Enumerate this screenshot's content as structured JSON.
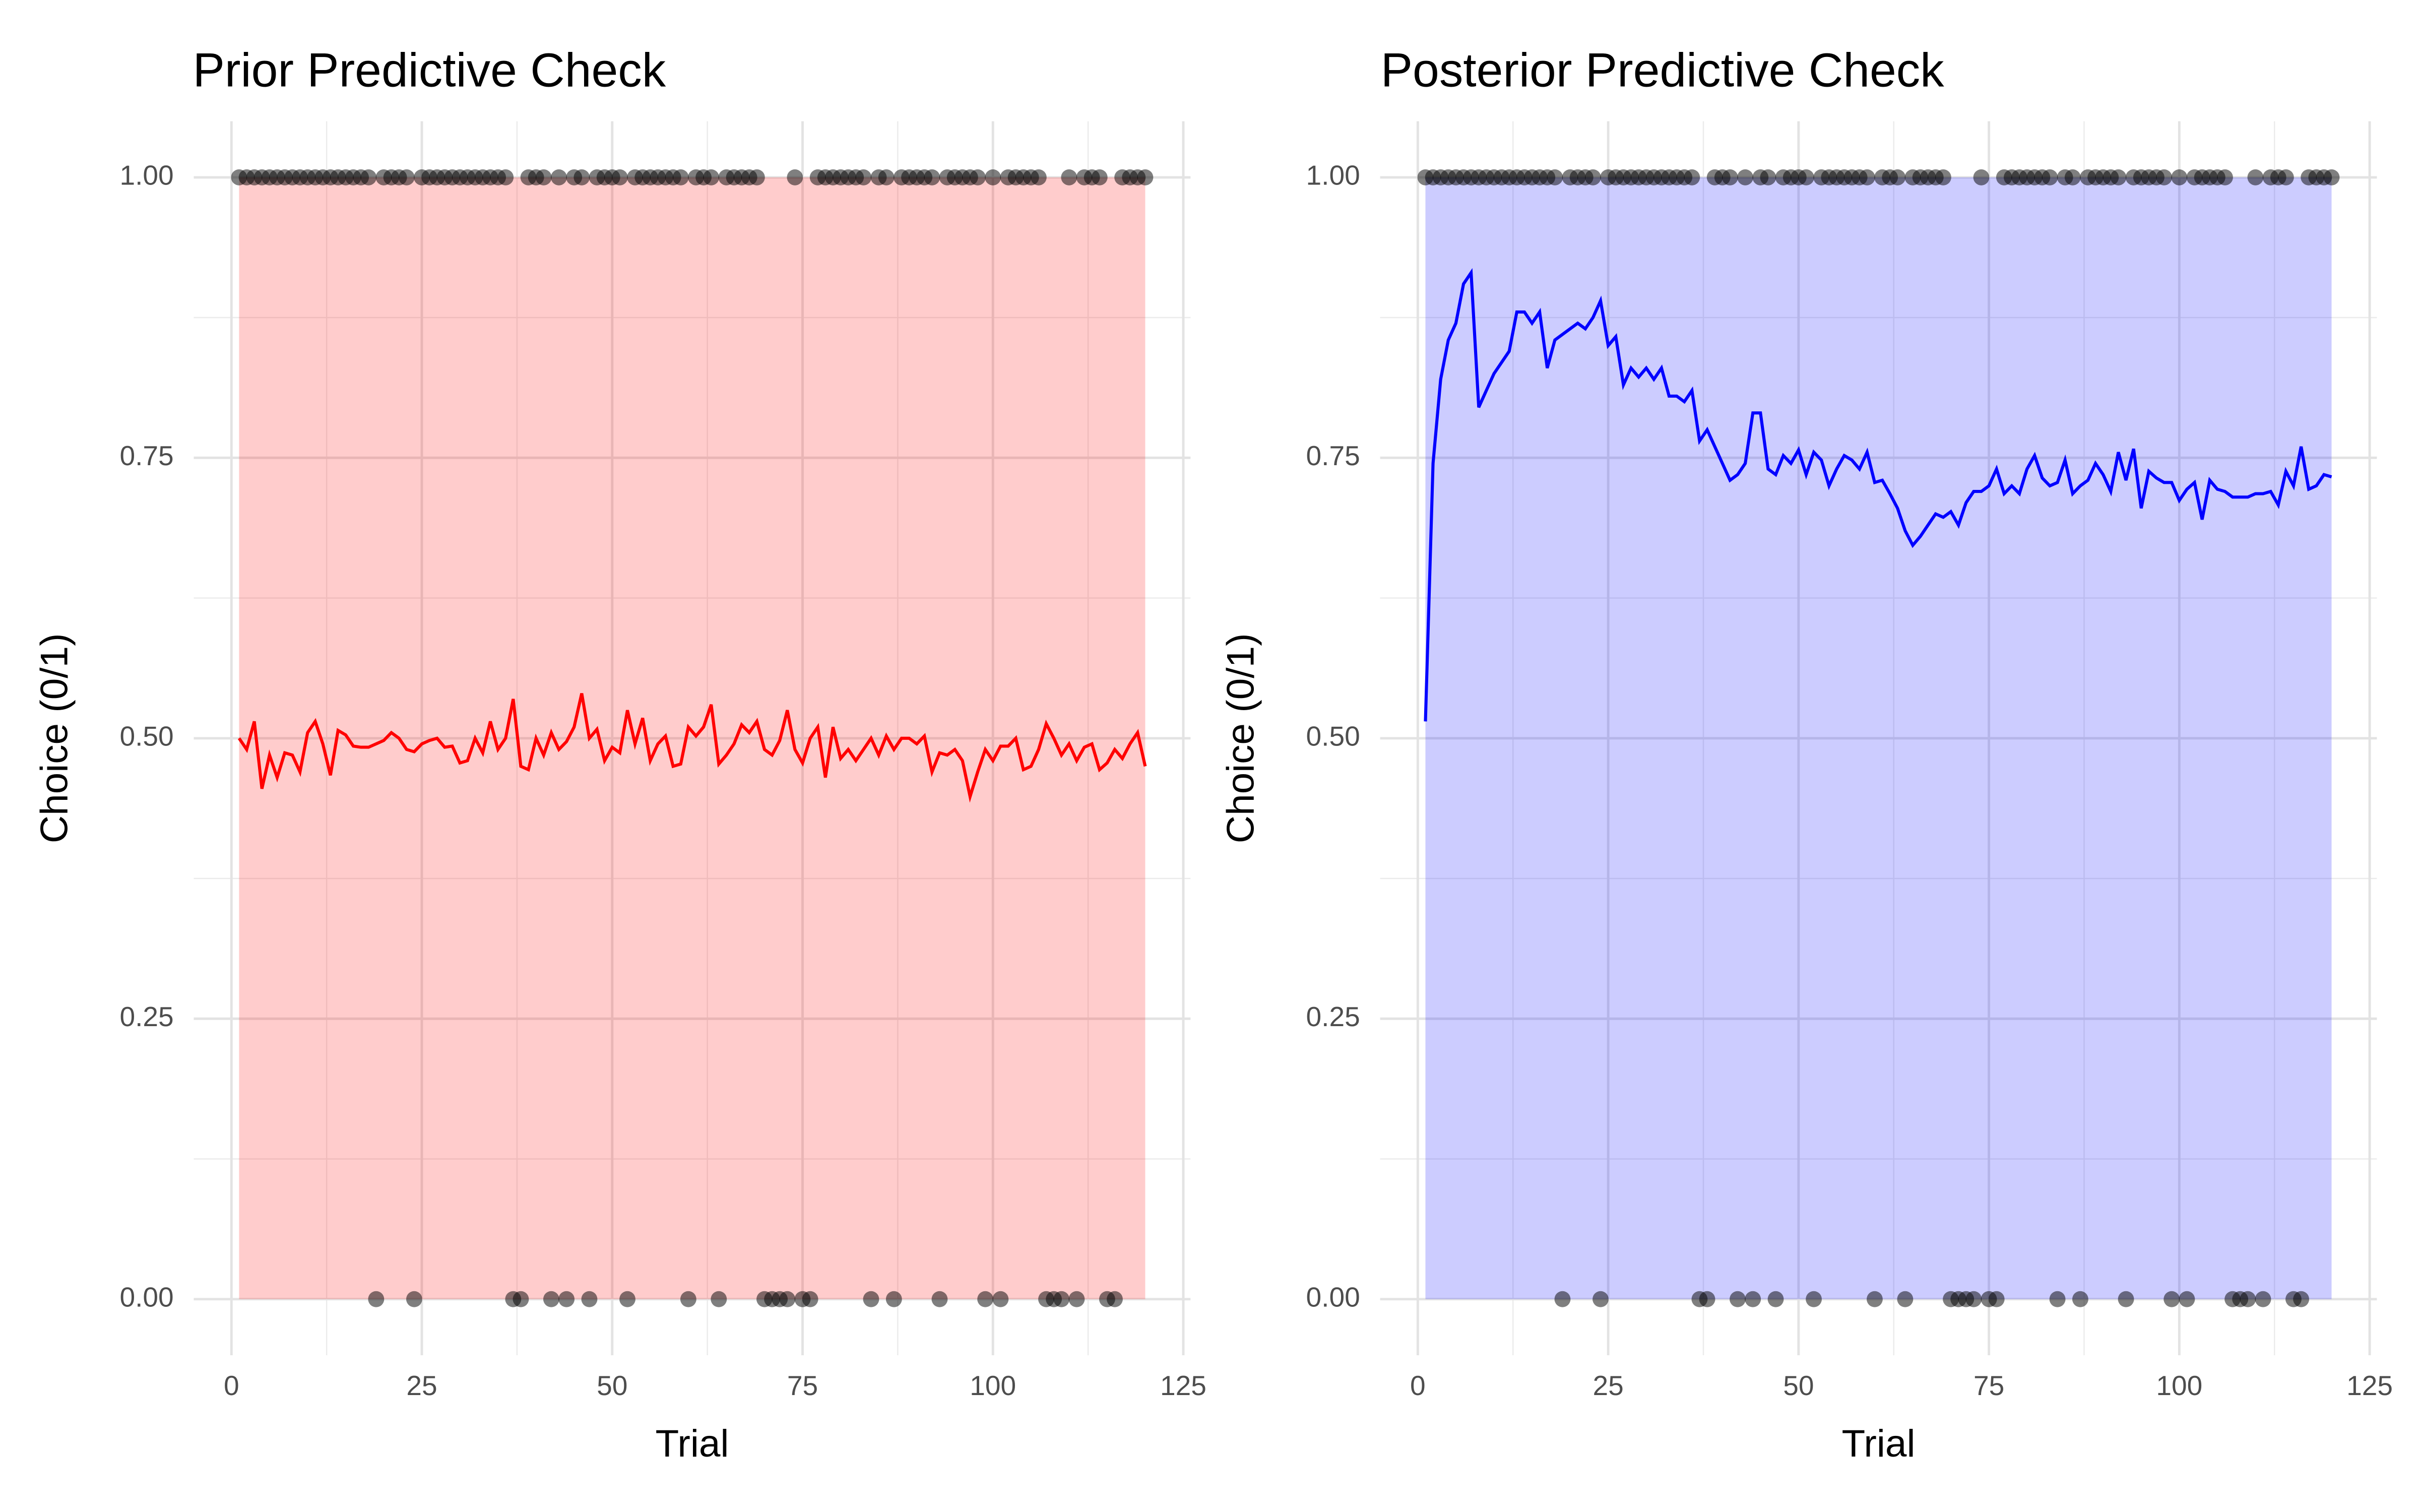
{
  "chart_data": [
    {
      "type": "line",
      "title": "Prior Predictive Check",
      "x_label": "Trial",
      "y_label": "Choice (0/1)",
      "x": [
        1,
        2,
        3,
        4,
        5,
        6,
        7,
        8,
        9,
        10,
        11,
        12,
        13,
        14,
        15,
        16,
        17,
        18,
        19,
        20,
        21,
        22,
        23,
        24,
        25,
        26,
        27,
        28,
        29,
        30,
        31,
        32,
        33,
        34,
        35,
        36,
        37,
        38,
        39,
        40,
        41,
        42,
        43,
        44,
        45,
        46,
        47,
        48,
        49,
        50,
        51,
        52,
        53,
        54,
        55,
        56,
        57,
        58,
        59,
        60,
        61,
        62,
        63,
        64,
        65,
        66,
        67,
        68,
        69,
        70,
        71,
        72,
        73,
        74,
        75,
        76,
        77,
        78,
        79,
        80,
        81,
        82,
        83,
        84,
        85,
        86,
        87,
        88,
        89,
        90,
        91,
        92,
        93,
        94,
        95,
        96,
        97,
        98,
        99,
        100,
        101,
        102,
        103,
        104,
        105,
        106,
        107,
        108,
        109,
        110,
        111,
        112,
        113,
        114,
        115,
        116,
        117,
        118,
        119,
        120
      ],
      "series": [
        {
          "color": "#ff0000",
          "values": [
            0.5,
            0.49,
            0.515,
            0.455,
            0.485,
            0.465,
            0.487,
            0.485,
            0.47,
            0.505,
            0.515,
            0.495,
            0.467,
            0.507,
            0.503,
            0.493,
            0.492,
            0.492,
            0.495,
            0.498,
            0.505,
            0.5,
            0.49,
            0.488,
            0.495,
            0.498,
            0.5,
            0.492,
            0.493,
            0.478,
            0.48,
            0.5,
            0.487,
            0.515,
            0.49,
            0.5,
            0.535,
            0.475,
            0.472,
            0.5,
            0.485,
            0.505,
            0.49,
            0.497,
            0.51,
            0.54,
            0.5,
            0.508,
            0.48,
            0.492,
            0.487,
            0.525,
            0.495,
            0.518,
            0.48,
            0.495,
            0.502,
            0.475,
            0.477,
            0.51,
            0.502,
            0.51,
            0.53,
            0.477,
            0.485,
            0.495,
            0.512,
            0.505,
            0.515,
            0.49,
            0.485,
            0.498,
            0.525,
            0.49,
            0.478,
            0.5,
            0.51,
            0.465,
            0.51,
            0.482,
            0.49,
            0.48,
            0.49,
            0.5,
            0.485,
            0.502,
            0.49,
            0.5,
            0.5,
            0.495,
            0.502,
            0.47,
            0.487,
            0.485,
            0.49,
            0.48,
            0.448,
            0.47,
            0.49,
            0.48,
            0.493,
            0.493,
            0.5,
            0.472,
            0.475,
            0.49,
            0.513,
            0.5,
            0.485,
            0.495,
            0.48,
            0.492,
            0.495,
            0.472,
            0.478,
            0.49,
            0.482,
            0.495,
            0.505,
            0.475
          ]
        }
      ],
      "ribbon": {
        "color": "#ff0000",
        "lower": 0,
        "upper": 1
      },
      "points": {
        "color": "#000000",
        "values": [
          1,
          1,
          1,
          1,
          1,
          1,
          1,
          1,
          1,
          1,
          1,
          1,
          1,
          1,
          1,
          1,
          1,
          1,
          0,
          1,
          1,
          1,
          1,
          0,
          1,
          1,
          1,
          1,
          1,
          1,
          1,
          1,
          1,
          1,
          1,
          1,
          0,
          0,
          1,
          1,
          1,
          0,
          1,
          0,
          1,
          1,
          0,
          1,
          1,
          1,
          1,
          0,
          1,
          1,
          1,
          1,
          1,
          1,
          1,
          0,
          1,
          1,
          1,
          0,
          1,
          1,
          1,
          1,
          1,
          0,
          0,
          0,
          0,
          1,
          0,
          0,
          1,
          1,
          1,
          1,
          1,
          1,
          1,
          0,
          1,
          1,
          0,
          1,
          1,
          1,
          1,
          1,
          0,
          1,
          1,
          1,
          1,
          1,
          0,
          1,
          0,
          1,
          1,
          1,
          1,
          1,
          0,
          0,
          0,
          1,
          0,
          1,
          1,
          1,
          0,
          0,
          1,
          1,
          1,
          1
        ]
      },
      "xlim": [
        -4.95,
        125.95
      ],
      "xticks": [
        0,
        25,
        50,
        75,
        100,
        125
      ],
      "ylim": [
        -0.05,
        1.05
      ],
      "yticks": [
        {
          "value": 0,
          "label": "0.00"
        },
        {
          "value": 0.25,
          "label": "0.25"
        },
        {
          "value": 0.5,
          "label": "0.50"
        },
        {
          "value": 0.75,
          "label": "0.75"
        },
        {
          "value": 1,
          "label": "1.00"
        }
      ],
      "grid": true
    },
    {
      "type": "line",
      "title": "Posterior Predictive Check",
      "x_label": "Trial",
      "y_label": "Choice (0/1)",
      "x": [
        1,
        2,
        3,
        4,
        5,
        6,
        7,
        8,
        9,
        10,
        11,
        12,
        13,
        14,
        15,
        16,
        17,
        18,
        19,
        20,
        21,
        22,
        23,
        24,
        25,
        26,
        27,
        28,
        29,
        30,
        31,
        32,
        33,
        34,
        35,
        36,
        37,
        38,
        39,
        40,
        41,
        42,
        43,
        44,
        45,
        46,
        47,
        48,
        49,
        50,
        51,
        52,
        53,
        54,
        55,
        56,
        57,
        58,
        59,
        60,
        61,
        62,
        63,
        64,
        65,
        66,
        67,
        68,
        69,
        70,
        71,
        72,
        73,
        74,
        75,
        76,
        77,
        78,
        79,
        80,
        81,
        82,
        83,
        84,
        85,
        86,
        87,
        88,
        89,
        90,
        91,
        92,
        93,
        94,
        95,
        96,
        97,
        98,
        99,
        100,
        101,
        102,
        103,
        104,
        105,
        106,
        107,
        108,
        109,
        110,
        111,
        112,
        113,
        114,
        115,
        116,
        117,
        118,
        119,
        120
      ],
      "series": [
        {
          "color": "#0000ff",
          "values": [
            0.515,
            0.745,
            0.82,
            0.855,
            0.87,
            0.905,
            0.915,
            0.795,
            0.81,
            0.825,
            0.835,
            0.845,
            0.88,
            0.88,
            0.87,
            0.88,
            0.83,
            0.855,
            0.86,
            0.865,
            0.87,
            0.865,
            0.875,
            0.89,
            0.85,
            0.858,
            0.815,
            0.83,
            0.822,
            0.83,
            0.82,
            0.83,
            0.805,
            0.805,
            0.8,
            0.81,
            0.765,
            0.775,
            0.76,
            0.745,
            0.73,
            0.735,
            0.745,
            0.79,
            0.79,
            0.74,
            0.735,
            0.752,
            0.745,
            0.757,
            0.735,
            0.755,
            0.748,
            0.725,
            0.74,
            0.752,
            0.748,
            0.74,
            0.755,
            0.728,
            0.73,
            0.718,
            0.705,
            0.685,
            0.672,
            0.68,
            0.69,
            0.7,
            0.697,
            0.702,
            0.69,
            0.71,
            0.72,
            0.72,
            0.725,
            0.74,
            0.718,
            0.725,
            0.718,
            0.74,
            0.752,
            0.732,
            0.725,
            0.728,
            0.748,
            0.718,
            0.725,
            0.73,
            0.745,
            0.735,
            0.72,
            0.755,
            0.73,
            0.758,
            0.705,
            0.738,
            0.732,
            0.728,
            0.728,
            0.712,
            0.722,
            0.728,
            0.695,
            0.73,
            0.722,
            0.72,
            0.715,
            0.715,
            0.715,
            0.718,
            0.718,
            0.72,
            0.708,
            0.738,
            0.725,
            0.76,
            0.722,
            0.725,
            0.735,
            0.733
          ]
        }
      ],
      "ribbon": {
        "color": "#0000ff",
        "lower": 0,
        "upper": 1
      },
      "points": {
        "color": "#000000",
        "values": [
          1,
          1,
          1,
          1,
          1,
          1,
          1,
          1,
          1,
          1,
          1,
          1,
          1,
          1,
          1,
          1,
          1,
          1,
          0,
          1,
          1,
          1,
          1,
          0,
          1,
          1,
          1,
          1,
          1,
          1,
          1,
          1,
          1,
          1,
          1,
          1,
          0,
          0,
          1,
          1,
          1,
          0,
          1,
          0,
          1,
          1,
          0,
          1,
          1,
          1,
          1,
          0,
          1,
          1,
          1,
          1,
          1,
          1,
          1,
          0,
          1,
          1,
          1,
          0,
          1,
          1,
          1,
          1,
          1,
          0,
          0,
          0,
          0,
          1,
          0,
          0,
          1,
          1,
          1,
          1,
          1,
          1,
          1,
          0,
          1,
          1,
          0,
          1,
          1,
          1,
          1,
          1,
          0,
          1,
          1,
          1,
          1,
          1,
          0,
          1,
          0,
          1,
          1,
          1,
          1,
          1,
          0,
          0,
          0,
          1,
          0,
          1,
          1,
          1,
          0,
          0,
          1,
          1,
          1,
          1
        ]
      },
      "xlim": [
        -4.95,
        125.95
      ],
      "xticks": [
        0,
        25,
        50,
        75,
        100,
        125
      ],
      "ylim": [
        -0.05,
        1.05
      ],
      "yticks": [
        {
          "value": 0,
          "label": "0.00"
        },
        {
          "value": 0.25,
          "label": "0.25"
        },
        {
          "value": 0.5,
          "label": "0.50"
        },
        {
          "value": 0.75,
          "label": "0.75"
        },
        {
          "value": 1,
          "label": "1.00"
        }
      ],
      "grid": true
    }
  ]
}
